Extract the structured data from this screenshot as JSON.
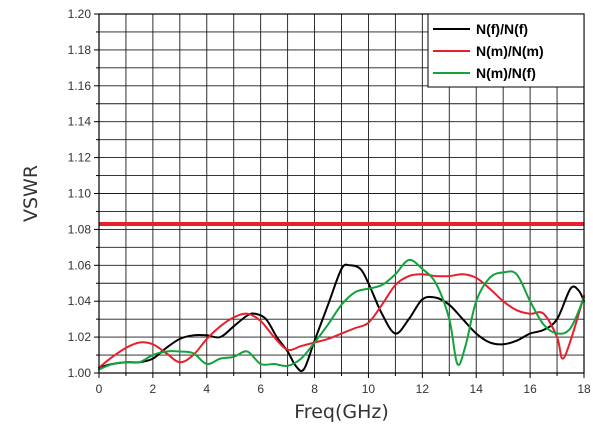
{
  "chart_data": {
    "type": "line",
    "title": "",
    "xlabel": "Freq(GHz)",
    "ylabel": "VSWR",
    "xlim": [
      0,
      18
    ],
    "ylim": [
      1.0,
      1.2
    ],
    "grid": true,
    "legend_position": "top-right",
    "x_ticks": [
      0,
      2,
      4,
      6,
      8,
      10,
      12,
      14,
      16,
      18
    ],
    "x_tick_labels": [
      "0",
      "2",
      "4",
      "6",
      "8",
      "10",
      "12",
      "14",
      "16",
      "18"
    ],
    "y_ticks": [
      1.0,
      1.02,
      1.04,
      1.06,
      1.08,
      1.1,
      1.12,
      1.14,
      1.16,
      1.18,
      1.2
    ],
    "y_tick_labels": [
      "1.00",
      "1.02",
      "1.04",
      "1.06",
      "1.08",
      "1.10",
      "1.12",
      "1.14",
      "1.16",
      "1.18",
      "1.20"
    ],
    "reference_line": {
      "y": 1.083,
      "color": "#e8202a"
    },
    "series": [
      {
        "name": "N(f)/N(f)",
        "color": "#000000",
        "x": [
          0,
          0.5,
          1,
          1.5,
          2,
          2.5,
          3,
          3.5,
          4,
          4.5,
          5,
          5.5,
          5.8,
          6.2,
          6.6,
          7,
          7.3,
          7.6,
          8,
          8.5,
          9,
          9.3,
          9.7,
          10,
          10.5,
          11,
          11.5,
          12,
          12.5,
          13,
          13.5,
          14,
          14.5,
          15,
          15.5,
          16,
          16.5,
          17,
          17.5,
          17.8,
          18
        ],
        "values": [
          1.003,
          1.005,
          1.006,
          1.006,
          1.008,
          1.014,
          1.019,
          1.021,
          1.021,
          1.02,
          1.026,
          1.032,
          1.033,
          1.03,
          1.02,
          1.012,
          1.004,
          1.002,
          1.018,
          1.038,
          1.058,
          1.06,
          1.058,
          1.05,
          1.033,
          1.022,
          1.03,
          1.041,
          1.042,
          1.038,
          1.03,
          1.022,
          1.017,
          1.016,
          1.018,
          1.022,
          1.024,
          1.03,
          1.047,
          1.046,
          1.04
        ]
      },
      {
        "name": "N(m)/N(m)",
        "color": "#e8202a",
        "x": [
          0,
          0.5,
          1,
          1.5,
          2,
          2.5,
          3,
          3.5,
          4,
          4.5,
          5,
          5.5,
          6,
          6.5,
          7,
          7.5,
          8,
          8.5,
          9,
          9.5,
          10,
          10.5,
          11,
          11.5,
          12,
          12.5,
          13,
          13.5,
          14,
          14.5,
          15,
          15.5,
          16,
          16.5,
          17,
          17.2,
          17.5,
          18
        ],
        "values": [
          1.003,
          1.009,
          1.014,
          1.017,
          1.016,
          1.011,
          1.006,
          1.01,
          1.019,
          1.026,
          1.031,
          1.033,
          1.029,
          1.02,
          1.013,
          1.015,
          1.017,
          1.019,
          1.022,
          1.025,
          1.028,
          1.038,
          1.049,
          1.054,
          1.055,
          1.054,
          1.054,
          1.055,
          1.053,
          1.047,
          1.04,
          1.035,
          1.033,
          1.033,
          1.02,
          1.008,
          1.018,
          1.043
        ]
      },
      {
        "name": "N(m)/N(f)",
        "color": "#12a33c",
        "x": [
          0,
          0.5,
          1,
          1.5,
          2,
          2.5,
          3,
          3.5,
          4,
          4.5,
          5,
          5.5,
          6,
          6.5,
          7,
          7.5,
          8,
          8.5,
          9,
          9.5,
          10,
          10.5,
          11,
          11.5,
          12,
          12.5,
          13,
          13.3,
          13.6,
          14,
          14.5,
          15,
          15.5,
          16,
          16.5,
          17,
          17.5,
          18
        ],
        "values": [
          1.002,
          1.005,
          1.006,
          1.006,
          1.01,
          1.012,
          1.012,
          1.011,
          1.005,
          1.008,
          1.009,
          1.012,
          1.005,
          1.005,
          1.004,
          1.008,
          1.017,
          1.027,
          1.038,
          1.045,
          1.047,
          1.049,
          1.055,
          1.063,
          1.058,
          1.05,
          1.03,
          1.005,
          1.015,
          1.04,
          1.053,
          1.056,
          1.055,
          1.04,
          1.027,
          1.022,
          1.025,
          1.042
        ]
      }
    ]
  }
}
